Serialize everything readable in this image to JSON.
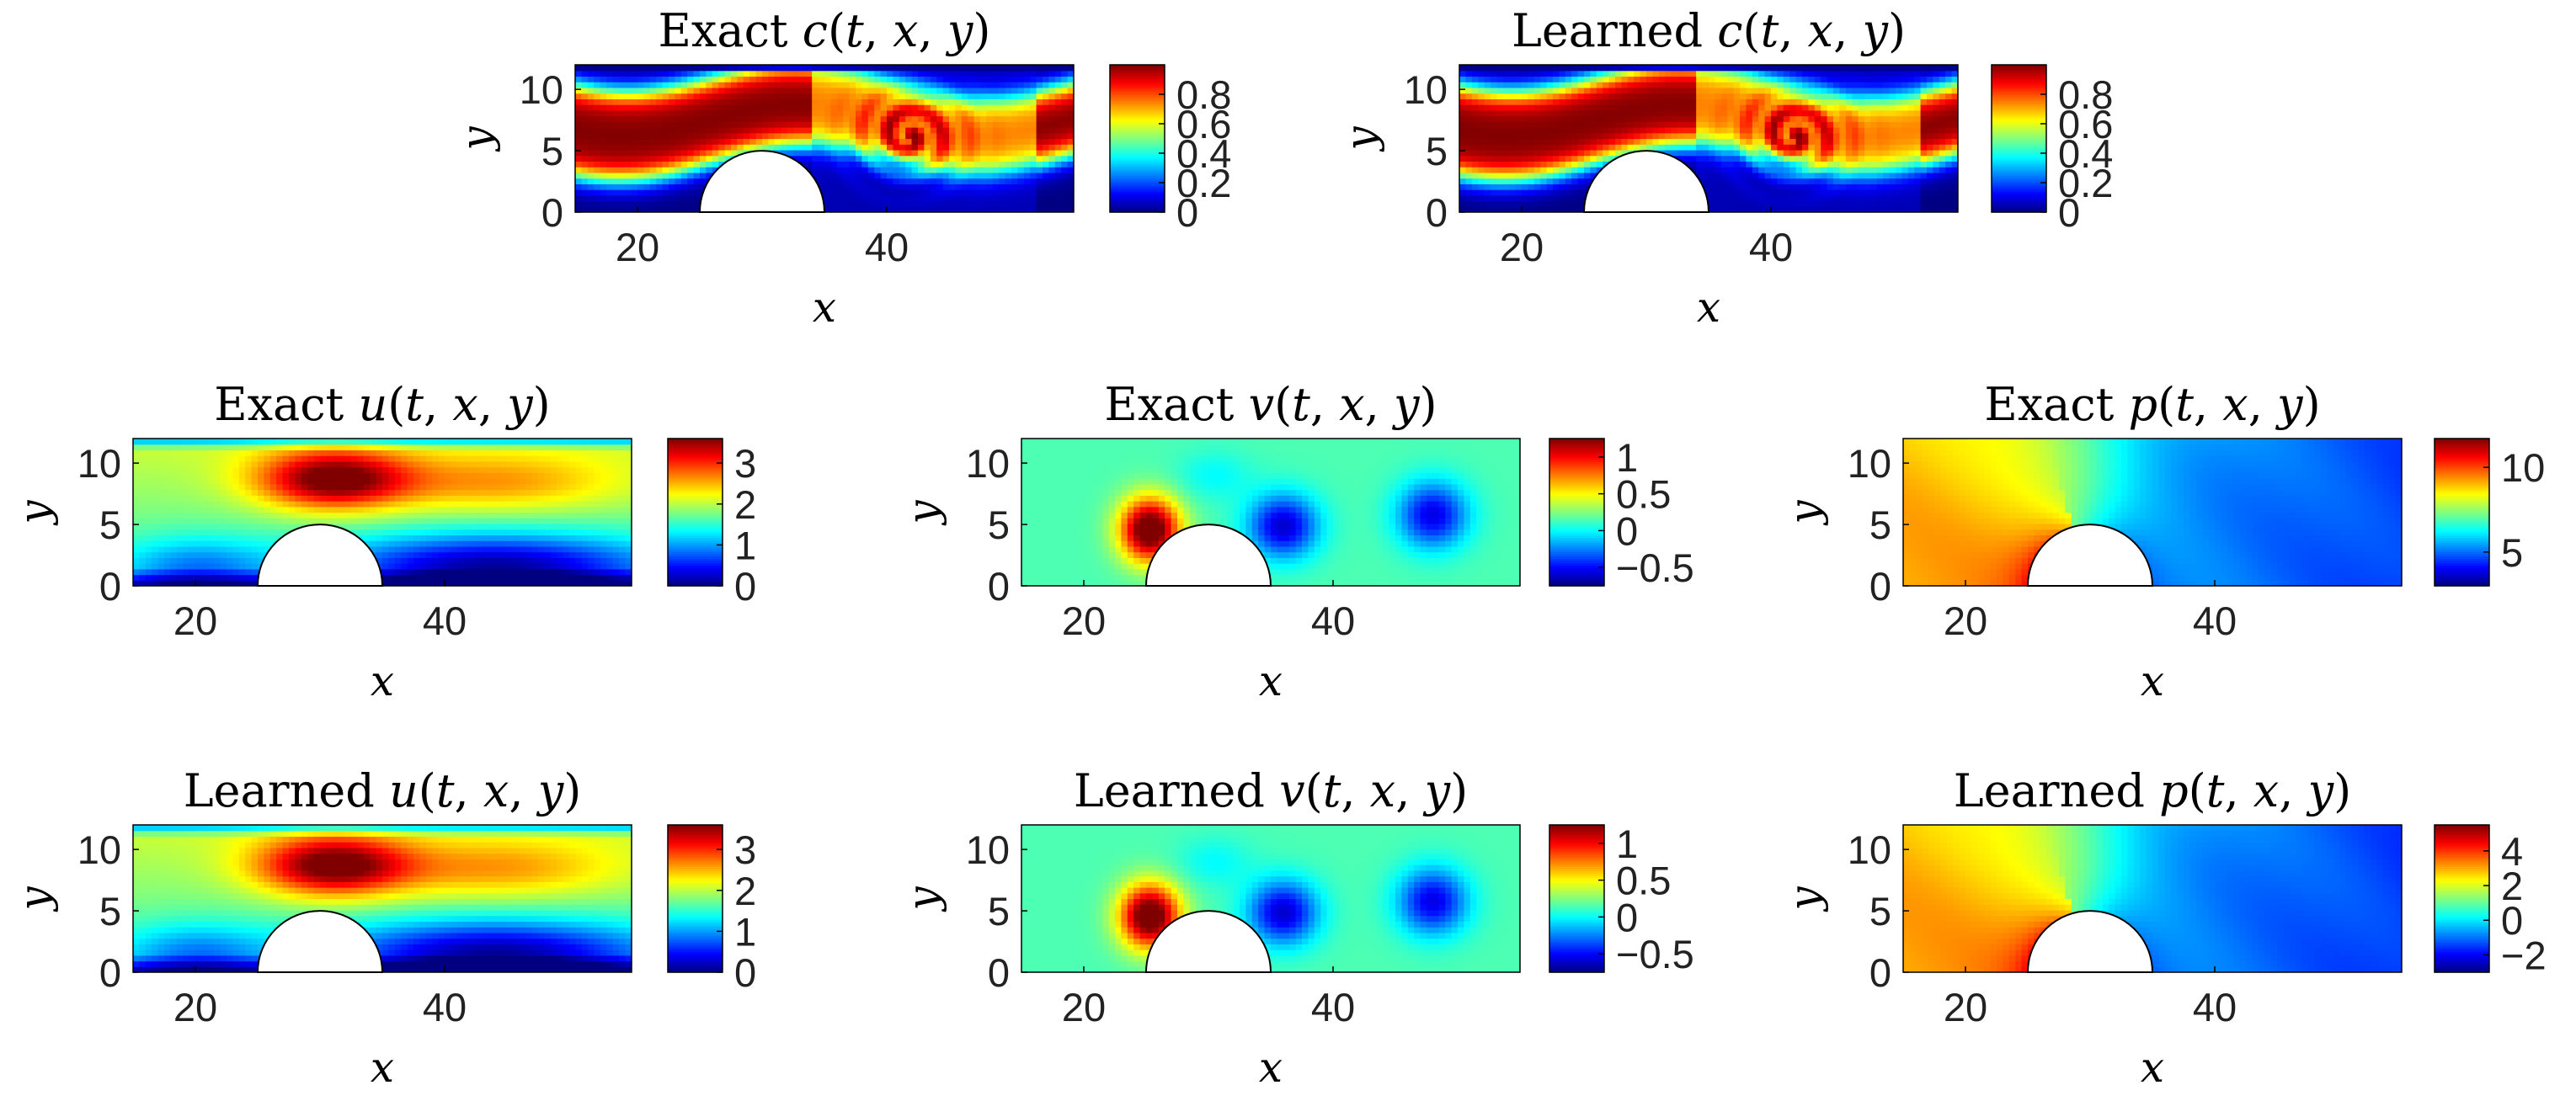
{
  "chart_data": [
    {
      "type": "heatmap",
      "id": "exact-c",
      "title": {
        "prefix": "Exact",
        "func": "c"
      },
      "xlabel": "x",
      "ylabel": "y",
      "xlim": [
        15,
        55
      ],
      "ylim": [
        0,
        12
      ],
      "xticks": [
        "20",
        "40"
      ],
      "yticks": [
        "0",
        "5",
        "10"
      ],
      "obstacle": {
        "shape": "half-disk",
        "center": [
          30,
          0
        ],
        "radius": 5
      },
      "field": "dye",
      "clim": [
        0,
        1
      ],
      "colorbar_ticks": [
        {
          "value": 0,
          "label": "0"
        },
        {
          "value": 0.2,
          "label": "0.2"
        },
        {
          "value": 0.4,
          "label": "0.4"
        },
        {
          "value": 0.6,
          "label": "0.6"
        },
        {
          "value": 0.8,
          "label": "0.8"
        }
      ]
    },
    {
      "type": "heatmap",
      "id": "learned-c",
      "title": {
        "prefix": "Learned",
        "func": "c"
      },
      "xlabel": "x",
      "ylabel": "y",
      "xlim": [
        15,
        55
      ],
      "ylim": [
        0,
        12
      ],
      "xticks": [
        "20",
        "40"
      ],
      "yticks": [
        "0",
        "5",
        "10"
      ],
      "obstacle": {
        "shape": "half-disk",
        "center": [
          30,
          0
        ],
        "radius": 5
      },
      "field": "dye",
      "clim": [
        0,
        1
      ],
      "colorbar_ticks": [
        {
          "value": 0,
          "label": "0"
        },
        {
          "value": 0.2,
          "label": "0.2"
        },
        {
          "value": 0.4,
          "label": "0.4"
        },
        {
          "value": 0.6,
          "label": "0.6"
        },
        {
          "value": 0.8,
          "label": "0.8"
        }
      ]
    },
    {
      "type": "heatmap",
      "id": "exact-u",
      "title": {
        "prefix": "Exact",
        "func": "u"
      },
      "xlabel": "x",
      "ylabel": "y",
      "xlim": [
        15,
        55
      ],
      "ylim": [
        0,
        12
      ],
      "xticks": [
        "20",
        "40"
      ],
      "yticks": [
        "0",
        "5",
        "10"
      ],
      "obstacle": {
        "shape": "half-disk",
        "center": [
          30,
          0
        ],
        "radius": 5
      },
      "field": "u",
      "clim": [
        0,
        3.6
      ],
      "colorbar_ticks": [
        {
          "value": 0,
          "label": "0"
        },
        {
          "value": 1,
          "label": "1"
        },
        {
          "value": 2,
          "label": "2"
        },
        {
          "value": 3,
          "label": "3"
        }
      ]
    },
    {
      "type": "heatmap",
      "id": "exact-v",
      "title": {
        "prefix": "Exact",
        "func": "v"
      },
      "xlabel": "x",
      "ylabel": "y",
      "xlim": [
        15,
        55
      ],
      "ylim": [
        0,
        12
      ],
      "xticks": [
        "20",
        "40"
      ],
      "yticks": [
        "0",
        "5",
        "10"
      ],
      "obstacle": {
        "shape": "half-disk",
        "center": [
          30,
          0
        ],
        "radius": 5
      },
      "field": "v",
      "clim": [
        -0.75,
        1.25
      ],
      "colorbar_ticks": [
        {
          "value": -0.5,
          "label": "−0.5"
        },
        {
          "value": 0,
          "label": "0"
        },
        {
          "value": 0.5,
          "label": "0.5"
        },
        {
          "value": 1,
          "label": "1"
        }
      ]
    },
    {
      "type": "heatmap",
      "id": "exact-p",
      "title": {
        "prefix": "Exact",
        "func": "p"
      },
      "xlabel": "x",
      "ylabel": "y",
      "xlim": [
        15,
        55
      ],
      "ylim": [
        0,
        12
      ],
      "xticks": [
        "20",
        "40"
      ],
      "yticks": [
        "0",
        "5",
        "10"
      ],
      "obstacle": {
        "shape": "half-disk",
        "center": [
          30,
          0
        ],
        "radius": 5
      },
      "field": "p",
      "clim": [
        3,
        11.7
      ],
      "colorbar_ticks": [
        {
          "value": 5,
          "label": "5"
        },
        {
          "value": 10,
          "label": "10"
        }
      ]
    },
    {
      "type": "heatmap",
      "id": "learned-u",
      "title": {
        "prefix": "Learned",
        "func": "u"
      },
      "xlabel": "x",
      "ylabel": "y",
      "xlim": [
        15,
        55
      ],
      "ylim": [
        0,
        12
      ],
      "xticks": [
        "20",
        "40"
      ],
      "yticks": [
        "0",
        "5",
        "10"
      ],
      "obstacle": {
        "shape": "half-disk",
        "center": [
          30,
          0
        ],
        "radius": 5
      },
      "field": "u",
      "clim": [
        0,
        3.6
      ],
      "colorbar_ticks": [
        {
          "value": 0,
          "label": "0"
        },
        {
          "value": 1,
          "label": "1"
        },
        {
          "value": 2,
          "label": "2"
        },
        {
          "value": 3,
          "label": "3"
        }
      ]
    },
    {
      "type": "heatmap",
      "id": "learned-v",
      "title": {
        "prefix": "Learned",
        "func": "v"
      },
      "xlabel": "x",
      "ylabel": "y",
      "xlim": [
        15,
        55
      ],
      "ylim": [
        0,
        12
      ],
      "xticks": [
        "20",
        "40"
      ],
      "yticks": [
        "0",
        "5",
        "10"
      ],
      "obstacle": {
        "shape": "half-disk",
        "center": [
          30,
          0
        ],
        "radius": 5
      },
      "field": "v",
      "clim": [
        -0.75,
        1.25
      ],
      "colorbar_ticks": [
        {
          "value": -0.5,
          "label": "−0.5"
        },
        {
          "value": 0,
          "label": "0"
        },
        {
          "value": 0.5,
          "label": "0.5"
        },
        {
          "value": 1,
          "label": "1"
        }
      ]
    },
    {
      "type": "heatmap",
      "id": "learned-p",
      "title": {
        "prefix": "Learned",
        "func": "p"
      },
      "xlabel": "x",
      "ylabel": "y",
      "xlim": [
        15,
        55
      ],
      "ylim": [
        0,
        12
      ],
      "xticks": [
        "20",
        "40"
      ],
      "yticks": [
        "0",
        "5",
        "10"
      ],
      "obstacle": {
        "shape": "half-disk",
        "center": [
          30,
          0
        ],
        "radius": 5
      },
      "field": "p",
      "clim": [
        -3,
        5.5
      ],
      "colorbar_ticks": [
        {
          "value": -2,
          "label": "−2"
        },
        {
          "value": 0,
          "label": "0"
        },
        {
          "value": 2,
          "label": "2"
        },
        {
          "value": 4,
          "label": "4"
        }
      ]
    }
  ],
  "colormap": "jet",
  "colors": {
    "obstacle_fill": "#ffffff",
    "axes_line": "#000000",
    "text": "#000000"
  }
}
